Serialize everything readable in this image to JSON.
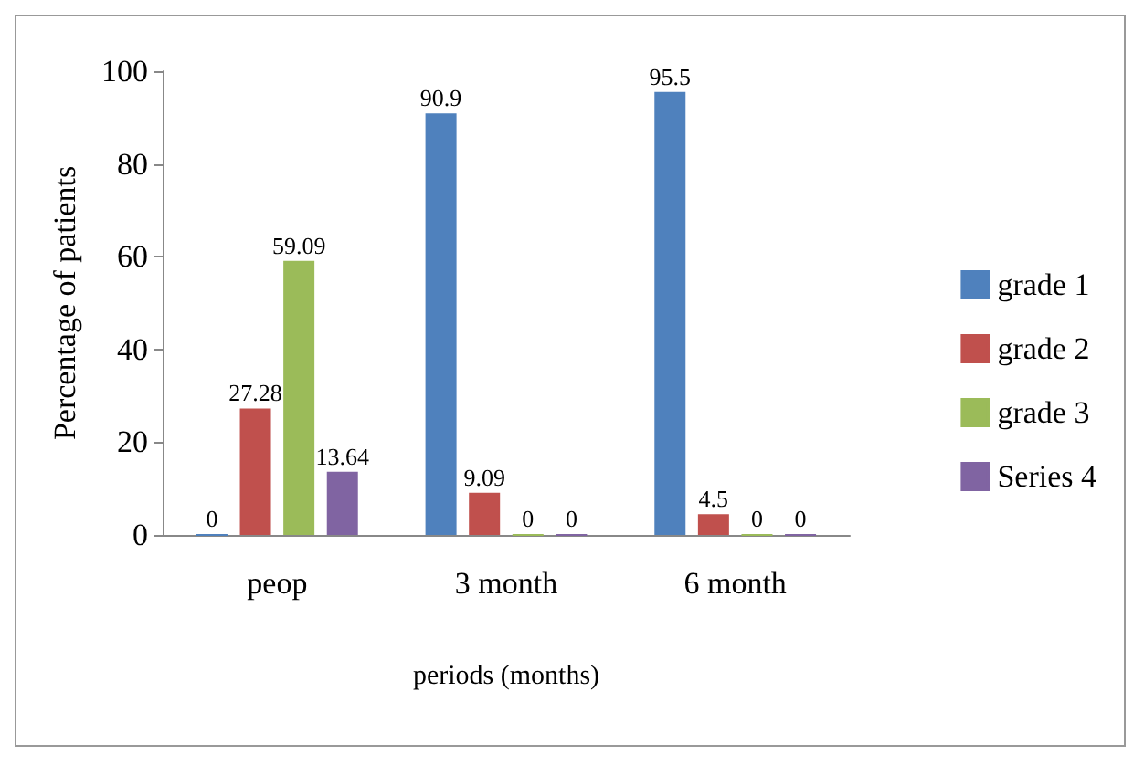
{
  "chart_data": {
    "type": "bar",
    "xlabel": "periods (months)",
    "ylabel": "Percentage of patients",
    "categories": [
      "peop",
      "3 month",
      "6 month"
    ],
    "series": [
      {
        "name": "grade 1",
        "color": "#4f81bd",
        "values": [
          0,
          90.9,
          95.5
        ]
      },
      {
        "name": "grade 2",
        "color": "#c0504d",
        "values": [
          27.28,
          9.09,
          4.5
        ]
      },
      {
        "name": "grade 3",
        "color": "#9bbb59",
        "values": [
          59.09,
          0,
          0
        ]
      },
      {
        "name": "Series 4",
        "color": "#8064a2",
        "values": [
          13.64,
          0,
          0
        ]
      }
    ],
    "ylim": [
      0,
      100
    ],
    "yticks": [
      0,
      20,
      40,
      60,
      80,
      100
    ],
    "grid": false,
    "legend": "right",
    "data_labels": true
  }
}
